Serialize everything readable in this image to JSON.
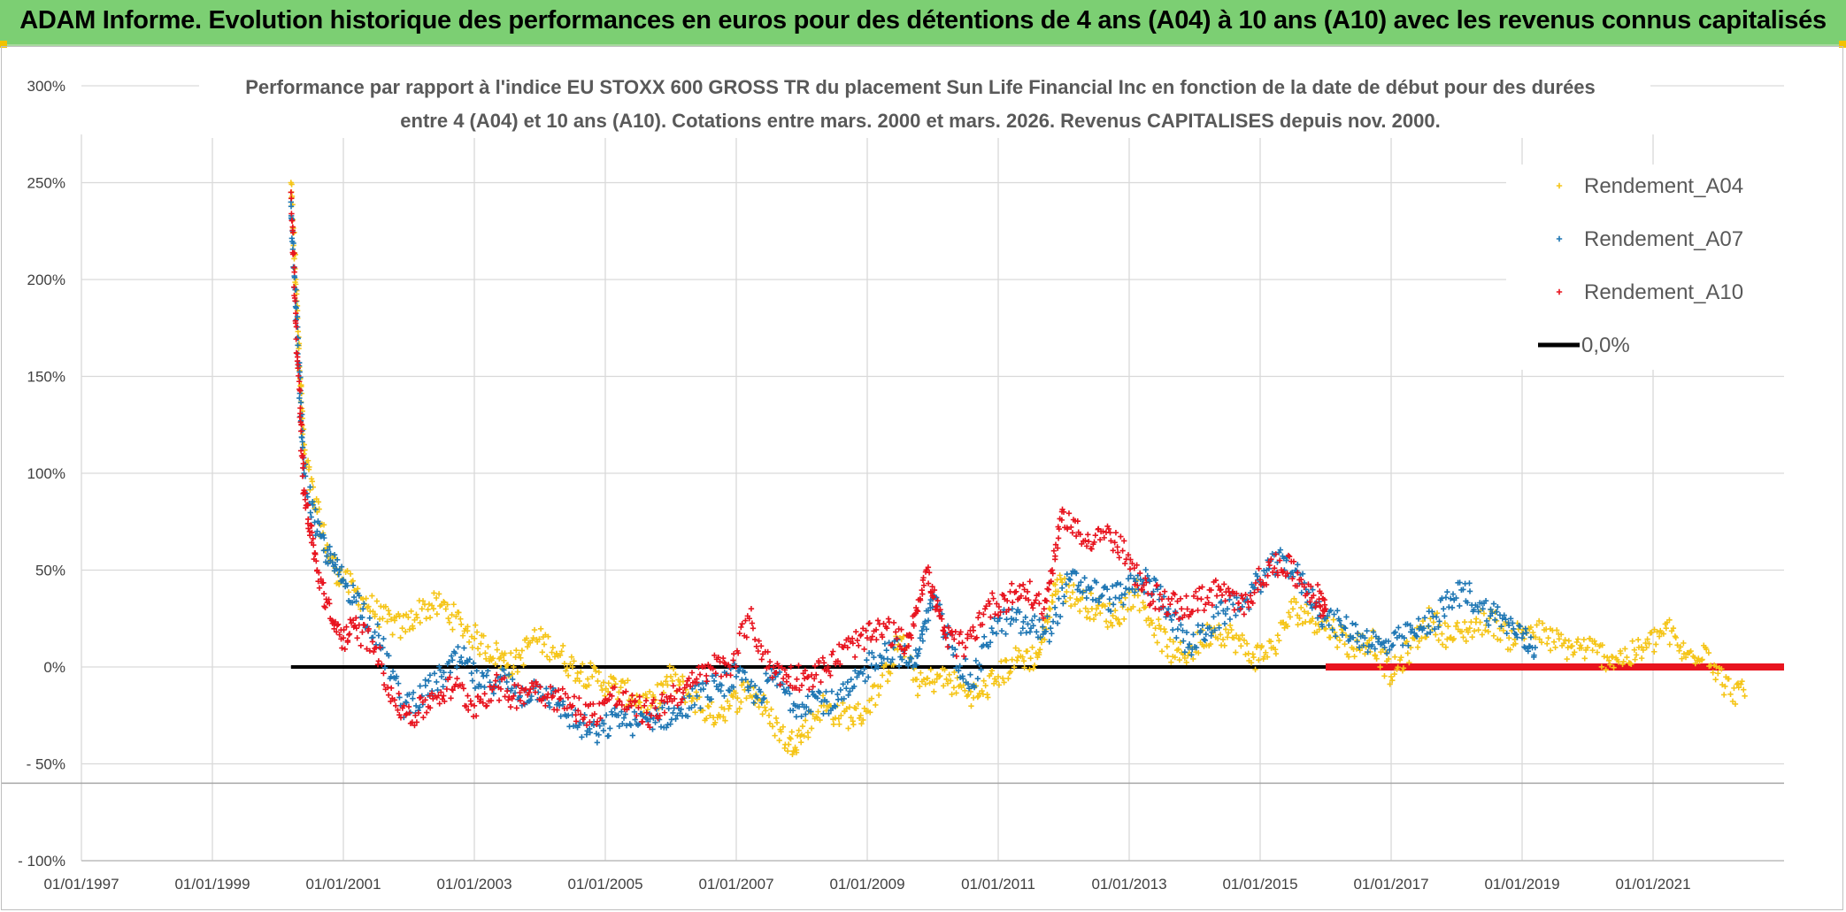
{
  "banner": {
    "title": "ADAM Informe. Evolution historique des performances en euros pour des détentions de 4 ans (A04) à 10 ans (A10) avec les revenus connus capitalisés",
    "color": "#7ccf73"
  },
  "chart_data": {
    "type": "scatter",
    "title_line1": "Performance par rapport à l'indice EU STOXX 600 GROSS TR  du placement Sun Life Financial Inc en fonction de la date de début pour des durées",
    "title_line2": "entre 4 (A04) et 10 ans (A10). Cotations entre mars. 2000 et mars. 2026. Revenus CAPITALISES depuis nov. 2000.",
    "xlabel": "",
    "ylabel": "",
    "xlim": [
      1997.0,
      2023.0
    ],
    "ylim": [
      -100,
      300
    ],
    "grid": true,
    "x_ticks": [
      {
        "x": 1997,
        "label": "01/01/1997"
      },
      {
        "x": 1999,
        "label": "01/01/1999"
      },
      {
        "x": 2001,
        "label": "01/01/2001"
      },
      {
        "x": 2003,
        "label": "01/01/2003"
      },
      {
        "x": 2005,
        "label": "01/01/2005"
      },
      {
        "x": 2007,
        "label": "01/01/2007"
      },
      {
        "x": 2009,
        "label": "01/01/2009"
      },
      {
        "x": 2011,
        "label": "01/01/2011"
      },
      {
        "x": 2013,
        "label": "01/01/2013"
      },
      {
        "x": 2015,
        "label": "01/01/2015"
      },
      {
        "x": 2017,
        "label": "01/01/2017"
      },
      {
        "x": 2019,
        "label": "01/01/2019"
      },
      {
        "x": 2021,
        "label": "01/01/2021"
      }
    ],
    "y_ticks": [
      {
        "y": 300,
        "label": "300%"
      },
      {
        "y": 250,
        "label": "250%"
      },
      {
        "y": 200,
        "label": "200%"
      },
      {
        "y": 150,
        "label": "150%"
      },
      {
        "y": 100,
        "label": "100%"
      },
      {
        "y": 50,
        "label": "50%"
      },
      {
        "y": 0,
        "label": "0%"
      },
      {
        "y": -50,
        "label": "- 50%"
      },
      {
        "y": -100,
        "label": "- 100%"
      }
    ],
    "legend_position": "top-right",
    "series": [
      {
        "name": "Rendement_A04",
        "color": "#f5c518",
        "marker": "plus",
        "x": [
          2000.2,
          2000.3,
          2000.4,
          2000.6,
          2000.8,
          2001.0,
          2001.3,
          2001.6,
          2001.9,
          2002.2,
          2002.5,
          2002.8,
          2003.1,
          2003.4,
          2003.6,
          2003.9,
          2004.2,
          2004.5,
          2004.8,
          2005.1,
          2005.4,
          2005.7,
          2006.0,
          2006.3,
          2006.6,
          2006.9,
          2007.2,
          2007.5,
          2007.8,
          2008.0,
          2008.3,
          2008.6,
          2008.9,
          2009.2,
          2009.5,
          2009.8,
          2010.1,
          2010.4,
          2010.7,
          2011.0,
          2011.3,
          2011.6,
          2011.9,
          2012.2,
          2012.5,
          2012.8,
          2013.1,
          2013.4,
          2013.7,
          2014.0,
          2014.3,
          2014.6,
          2014.9,
          2015.2,
          2015.5,
          2015.8,
          2016.1,
          2016.4,
          2016.7,
          2017.0,
          2017.3,
          2017.6,
          2017.9,
          2018.2,
          2018.5,
          2018.8,
          2019.1,
          2019.4,
          2019.7,
          2020.0,
          2020.3,
          2020.6,
          2020.9,
          2021.2,
          2021.5,
          2021.8,
          2022.1,
          2022.4
        ],
        "y": [
          250,
          180,
          110,
          80,
          55,
          45,
          35,
          25,
          20,
          30,
          32,
          22,
          12,
          5,
          0,
          15,
          10,
          0,
          -5,
          -10,
          -15,
          -20,
          -5,
          -15,
          -25,
          -20,
          -10,
          -25,
          -40,
          -35,
          -20,
          -25,
          -25,
          -10,
          15,
          -10,
          -5,
          -10,
          -15,
          -5,
          5,
          5,
          45,
          35,
          30,
          25,
          40,
          20,
          5,
          10,
          20,
          15,
          5,
          10,
          30,
          25,
          20,
          10,
          15,
          -5,
          10,
          25,
          15,
          20,
          25,
          15,
          20,
          15,
          10,
          10,
          5,
          5,
          10,
          20,
          5,
          10,
          -10,
          -15
        ]
      },
      {
        "name": "Rendement_A07",
        "color": "#1f77b4",
        "marker": "plus",
        "x": [
          2000.2,
          2000.3,
          2000.4,
          2000.6,
          2000.8,
          2001.0,
          2001.3,
          2001.6,
          2001.9,
          2002.2,
          2002.5,
          2002.8,
          2003.1,
          2003.4,
          2003.7,
          2004.0,
          2004.3,
          2004.6,
          2004.9,
          2005.2,
          2005.5,
          2005.8,
          2006.1,
          2006.4,
          2006.7,
          2007.0,
          2007.3,
          2007.6,
          2007.9,
          2008.2,
          2008.5,
          2008.8,
          2009.1,
          2009.4,
          2009.7,
          2010.0,
          2010.3,
          2010.6,
          2010.9,
          2011.2,
          2011.5,
          2011.8,
          2012.1,
          2012.4,
          2012.7,
          2013.0,
          2013.3,
          2013.6,
          2013.9,
          2014.2,
          2014.5,
          2014.8,
          2015.1,
          2015.4,
          2015.7,
          2016.0,
          2016.3,
          2016.6,
          2016.9,
          2017.2,
          2017.5,
          2017.8,
          2018.1,
          2018.4,
          2018.7,
          2019.0,
          2019.2
        ],
        "y": [
          240,
          170,
          100,
          70,
          55,
          45,
          30,
          10,
          -20,
          -15,
          -5,
          5,
          -10,
          -5,
          -15,
          -10,
          -20,
          -30,
          -35,
          -25,
          -30,
          -25,
          -25,
          -15,
          -10,
          -5,
          -15,
          -5,
          -20,
          -15,
          -20,
          -10,
          5,
          10,
          0,
          35,
          10,
          -10,
          20,
          25,
          20,
          20,
          45,
          40,
          35,
          40,
          45,
          30,
          10,
          20,
          30,
          35,
          50,
          55,
          40,
          25,
          20,
          15,
          10,
          15,
          20,
          30,
          40,
          30,
          25,
          15,
          10
        ]
      },
      {
        "name": "Rendement_A10",
        "color": "#e8141f",
        "marker": "plus",
        "x": [
          2000.2,
          2000.3,
          2000.4,
          2000.6,
          2000.8,
          2001.0,
          2001.2,
          2001.5,
          2001.8,
          2002.1,
          2002.4,
          2002.7,
          2003.0,
          2003.3,
          2003.6,
          2003.9,
          2004.2,
          2004.5,
          2004.8,
          2005.1,
          2005.4,
          2005.7,
          2006.0,
          2006.3,
          2006.6,
          2006.9,
          2007.2,
          2007.5,
          2007.8,
          2008.1,
          2008.4,
          2008.7,
          2009.0,
          2009.3,
          2009.6,
          2009.9,
          2010.2,
          2010.5,
          2010.8,
          2011.1,
          2011.4,
          2011.7,
          2012.0,
          2012.3,
          2012.6,
          2012.9,
          2013.2,
          2013.5,
          2013.8,
          2014.1,
          2014.4,
          2014.7,
          2015.0,
          2015.3,
          2015.6,
          2015.9,
          2016.0
        ],
        "y": [
          245,
          160,
          90,
          50,
          25,
          15,
          20,
          10,
          -20,
          -25,
          -15,
          -10,
          -20,
          -10,
          -15,
          -10,
          -15,
          -20,
          -25,
          -15,
          -20,
          -25,
          -15,
          -10,
          0,
          0,
          25,
          0,
          -5,
          -5,
          0,
          10,
          15,
          20,
          10,
          50,
          15,
          10,
          30,
          35,
          40,
          30,
          80,
          65,
          70,
          60,
          40,
          35,
          30,
          35,
          40,
          30,
          45,
          55,
          45,
          35,
          30
        ]
      },
      {
        "name": "Rendement_A10 (zero segment)",
        "color": "#e8141f",
        "marker": "thick-line",
        "x": [
          2016.0,
          2023.0
        ],
        "y": [
          0,
          0
        ]
      },
      {
        "name": "0,0%",
        "color": "#000000",
        "marker": "line",
        "x": [
          2000.2,
          2016.0
        ],
        "y": [
          0,
          0
        ]
      }
    ],
    "legend": [
      {
        "label": "Rendement_A04",
        "color": "#f5c518",
        "kind": "plus"
      },
      {
        "label": "Rendement_A07",
        "color": "#1f77b4",
        "kind": "plus"
      },
      {
        "label": "Rendement_A10",
        "color": "#e8141f",
        "kind": "plus"
      },
      {
        "label": "0,0%",
        "color": "#000000",
        "kind": "line"
      }
    ]
  }
}
